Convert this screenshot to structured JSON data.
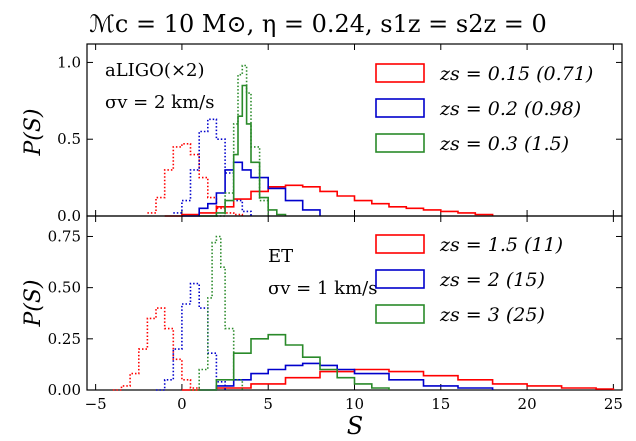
{
  "figure": {
    "title": "ℳc = 10 M⊙, η = 0.24,  s1z = s2z = 0",
    "xlabel": "S",
    "ylabel": "P(S)"
  },
  "chart_data": [
    {
      "type": "line",
      "title": "",
      "annotations": [
        "aLIGO(×2)",
        "σv = 2 km/s"
      ],
      "ylabel": "P(S)",
      "xlim": [
        -5.5,
        25.5
      ],
      "ylim": [
        0,
        1.12
      ],
      "yticks": [
        "0.0",
        "0.5",
        "1.0"
      ],
      "legend_position": "top-right",
      "style_note_solid": "observed S distribution",
      "series": [
        {
          "name": "zs = 0.15 (0.71)",
          "color": "#ff0000",
          "dotted": {
            "x": [
              -2,
              -1.5,
              -1,
              -0.5,
              0,
              0.5,
              1,
              1.5,
              2,
              2.5,
              3,
              3.5
            ],
            "y": [
              0.02,
              0.12,
              0.3,
              0.45,
              0.47,
              0.4,
              0.25,
              0.12,
              0.05,
              0.02,
              0.01,
              0.0
            ]
          },
          "solid": {
            "x": [
              -1,
              0,
              1,
              2,
              3,
              4,
              5,
              6,
              7,
              8,
              9,
              10,
              11,
              12,
              13,
              14,
              15,
              16,
              17,
              18
            ],
            "y": [
              0.0,
              0.01,
              0.02,
              0.06,
              0.11,
              0.16,
              0.19,
              0.2,
              0.19,
              0.16,
              0.13,
              0.1,
              0.08,
              0.06,
              0.05,
              0.04,
              0.03,
              0.02,
              0.01,
              0.0
            ]
          }
        },
        {
          "name": "zs = 0.2 (0.98)",
          "color": "#0000cc",
          "dotted": {
            "x": [
              -0.5,
              0,
              0.5,
              1,
              1.5,
              2,
              2.5,
              3,
              3.5,
              4
            ],
            "y": [
              0.02,
              0.1,
              0.3,
              0.55,
              0.63,
              0.5,
              0.28,
              0.1,
              0.03,
              0.0
            ]
          },
          "solid": {
            "x": [
              0,
              1,
              1.5,
              2,
              2.5,
              3,
              3.5,
              4,
              5,
              6,
              7,
              8
            ],
            "y": [
              0.0,
              0.05,
              0.08,
              0.15,
              0.3,
              0.35,
              0.3,
              0.25,
              0.18,
              0.1,
              0.04,
              0.0
            ]
          }
        },
        {
          "name": "zs = 0.3 (1.5)",
          "color": "#2a8a2a",
          "dotted": {
            "x": [
              2,
              2.5,
              3,
              3.25,
              3.5,
              3.75,
              4,
              4.5,
              5
            ],
            "y": [
              0.0,
              0.15,
              0.6,
              0.92,
              0.98,
              0.8,
              0.45,
              0.1,
              0.0
            ]
          },
          "solid": {
            "x": [
              1,
              2,
              2.5,
              3,
              3.25,
              3.5,
              3.75,
              4,
              4.5,
              5,
              5.5,
              6
            ],
            "y": [
              0.0,
              0.02,
              0.1,
              0.4,
              0.65,
              0.85,
              0.6,
              0.35,
              0.12,
              0.04,
              0.01,
              0.0
            ]
          }
        }
      ]
    },
    {
      "type": "line",
      "title": "",
      "annotations": [
        "ET",
        "σv = 1 km/s"
      ],
      "ylabel": "P(S)",
      "xlim": [
        -5.5,
        25.5
      ],
      "ylim": [
        0,
        0.85
      ],
      "yticks": [
        "0.00",
        "0.25",
        "0.50",
        "0.75"
      ],
      "xticks": [
        "−5",
        "0",
        "5",
        "10",
        "15",
        "20",
        "25"
      ],
      "legend_position": "top-right",
      "series": [
        {
          "name": "zs = 1.5 (11)",
          "color": "#ff0000",
          "dotted": {
            "x": [
              -4,
              -3.5,
              -3,
              -2.5,
              -2,
              -1.5,
              -1,
              -0.5,
              0,
              0.5,
              1
            ],
            "y": [
              0.0,
              0.02,
              0.08,
              0.2,
              0.35,
              0.4,
              0.3,
              0.15,
              0.05,
              0.01,
              0.0
            ]
          },
          "solid": {
            "x": [
              0,
              2,
              4,
              6,
              8,
              10,
              12,
              14,
              16,
              18,
              20,
              22,
              24,
              25
            ],
            "y": [
              0.0,
              0.01,
              0.03,
              0.06,
              0.09,
              0.1,
              0.09,
              0.07,
              0.05,
              0.03,
              0.02,
              0.01,
              0.005,
              0.0
            ]
          }
        },
        {
          "name": "zs = 2 (15)",
          "color": "#0000cc",
          "dotted": {
            "x": [
              -1.5,
              -1,
              -0.5,
              0,
              0.5,
              1,
              1.5,
              2,
              2.5
            ],
            "y": [
              0.0,
              0.05,
              0.2,
              0.42,
              0.52,
              0.4,
              0.18,
              0.04,
              0.0
            ]
          },
          "solid": {
            "x": [
              1,
              2,
              3,
              4,
              5,
              6,
              7,
              8,
              9,
              10,
              12,
              14,
              16,
              18
            ],
            "y": [
              0.0,
              0.02,
              0.05,
              0.08,
              0.1,
              0.12,
              0.13,
              0.12,
              0.1,
              0.08,
              0.05,
              0.02,
              0.01,
              0.0
            ]
          }
        },
        {
          "name": "zs = 3 (25)",
          "color": "#2a8a2a",
          "dotted": {
            "x": [
              0.5,
              1,
              1.5,
              1.75,
              2,
              2.25,
              2.5,
              3,
              3.5
            ],
            "y": [
              0.0,
              0.1,
              0.45,
              0.72,
              0.75,
              0.6,
              0.3,
              0.05,
              0.0
            ]
          },
          "solid": {
            "x": [
              1,
              2,
              3,
              4,
              5,
              6,
              7,
              8,
              9,
              10,
              11,
              12
            ],
            "y": [
              0.0,
              0.05,
              0.18,
              0.25,
              0.27,
              0.22,
              0.16,
              0.1,
              0.06,
              0.03,
              0.01,
              0.0
            ]
          }
        }
      ]
    }
  ]
}
